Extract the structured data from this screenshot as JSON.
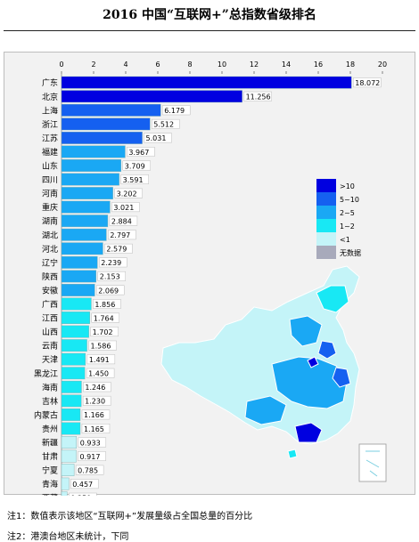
{
  "title": "2016 中国“互联网+”总指数省级排名",
  "notes": [
    "注1：数值表示该地区“互联网+”发展量级占全国总量的百分比",
    "注2：港澳台地区未统计，下同"
  ],
  "chart_data": {
    "type": "bar",
    "orientation": "horizontal",
    "title": "",
    "xlabel": "",
    "ylabel": "",
    "xlim": [
      0,
      20
    ],
    "xticks": [
      0,
      2,
      4,
      6,
      8,
      10,
      12,
      14,
      16,
      18,
      20
    ],
    "x_axis_position": "top",
    "categories": [
      "广东",
      "北京",
      "上海",
      "浙江",
      "江苏",
      "福建",
      "山东",
      "四川",
      "河南",
      "重庆",
      "湖南",
      "湖北",
      "河北",
      "辽宁",
      "陕西",
      "安徽",
      "广西",
      "江西",
      "山西",
      "云南",
      "天津",
      "黑龙江",
      "海南",
      "吉林",
      "内蒙古",
      "贵州",
      "新疆",
      "甘肃",
      "宁夏",
      "青海",
      "西藏"
    ],
    "values": [
      18.072,
      11.256,
      6.179,
      5.512,
      5.031,
      3.967,
      3.709,
      3.591,
      3.202,
      3.021,
      2.884,
      2.797,
      2.579,
      2.239,
      2.153,
      2.069,
      1.856,
      1.764,
      1.702,
      1.586,
      1.491,
      1.45,
      1.246,
      1.23,
      1.166,
      1.165,
      0.933,
      0.917,
      0.785,
      0.457,
      0.35
    ],
    "value_labels": [
      "18.072",
      "11.256",
      "6.179",
      "5.512",
      "5.031",
      "3.967",
      "3.709",
      "3.591",
      "3.202",
      "3.021",
      "2.884",
      "2.797",
      "2.579",
      "2.239",
      "2.153",
      "2.069",
      "1.856",
      "1.764",
      "1.702",
      "1.586",
      "1.491",
      "1.450",
      "1.246",
      "1.230",
      "1.166",
      "1.165",
      "0.933",
      "0.917",
      "0.785",
      "0.457",
      "0.350"
    ],
    "legend": {
      "placement": "right",
      "entries": [
        {
          "label": ">10",
          "color": "#0000e0"
        },
        {
          "label": "5~10",
          "color": "#1560f0"
        },
        {
          "label": "2~5",
          "color": "#1aa8f4"
        },
        {
          "label": "1~2",
          "color": "#18e8f4"
        },
        {
          "label": "<1",
          "color": "#c4f4f8"
        },
        {
          "label": "无数据",
          "color": "#a8aabb"
        }
      ]
    },
    "map": {
      "description_free": true,
      "background_color": "#c4f4f8"
    }
  }
}
